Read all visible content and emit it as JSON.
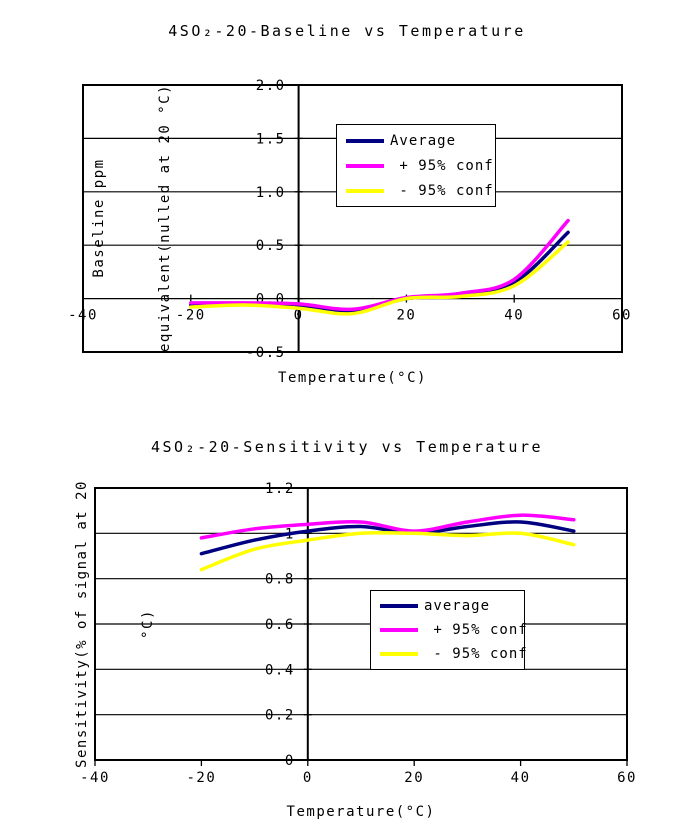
{
  "page": {
    "background": "#ffffff"
  },
  "chart_data": [
    {
      "type": "line",
      "title": "4SO₂-20-Baseline vs Temperature",
      "xlabel": "Temperature(°C)",
      "ylabel": "Baseline ppm equivalent(nulled at 20 °C)",
      "ylabel_lines": [
        "Baseline ppm",
        "equivalent(nulled at 20 °C)"
      ],
      "x": [
        -20,
        -10,
        0,
        10,
        20,
        30,
        40,
        50
      ],
      "series": [
        {
          "name": "Average",
          "legend_label": "Average",
          "color": "#000080",
          "values": [
            -0.06,
            -0.05,
            -0.07,
            -0.12,
            0.0,
            0.03,
            0.15,
            0.62
          ]
        },
        {
          "name": "+ 95% conf",
          "legend_label": " + 95% conf",
          "color": "#ff00ff",
          "values": [
            -0.04,
            -0.04,
            -0.05,
            -0.1,
            0.01,
            0.05,
            0.18,
            0.73
          ]
        },
        {
          "name": "- 95% conf",
          "legend_label": " - 95% conf",
          "color": "#ffff00",
          "values": [
            -0.08,
            -0.06,
            -0.09,
            -0.14,
            0.0,
            0.02,
            0.12,
            0.53
          ]
        }
      ],
      "xlim": [
        -40,
        60
      ],
      "ylim": [
        -0.5,
        2.0
      ],
      "x_ticks": [
        {
          "value": -40,
          "label": "-40"
        },
        {
          "value": -20,
          "label": "-20"
        },
        {
          "value": 0,
          "label": "0"
        },
        {
          "value": 20,
          "label": "20"
        },
        {
          "value": 40,
          "label": "40"
        },
        {
          "value": 60,
          "label": "60"
        }
      ],
      "y_ticks": [
        {
          "value": -0.5,
          "label": "-0.5"
        },
        {
          "value": 0,
          "label": "0.0"
        },
        {
          "value": 0.5,
          "label": "0.5"
        },
        {
          "value": 1,
          "label": "1.0"
        },
        {
          "value": 1.5,
          "label": "1.5"
        },
        {
          "value": 2,
          "label": "2.0"
        }
      ],
      "grid": "horizontal",
      "legend_position": "inside-upper-center"
    },
    {
      "type": "line",
      "title": "4SO₂-20-Sensitivity vs Temperature",
      "xlabel": "Temperature(°C)",
      "ylabel": "Sensitivity(% of signal at 20 °C)",
      "ylabel_lines": [
        "Sensitivity(% of signal at 20",
        "°C)"
      ],
      "x": [
        -20,
        -10,
        0,
        10,
        20,
        30,
        40,
        50
      ],
      "series": [
        {
          "name": "average",
          "legend_label": "average",
          "color": "#000080",
          "values": [
            0.91,
            0.97,
            1.01,
            1.03,
            1.0,
            1.03,
            1.05,
            1.01
          ]
        },
        {
          "name": "+ 95% conf",
          "legend_label": " + 95% conf",
          "color": "#ff00ff",
          "values": [
            0.98,
            1.02,
            1.04,
            1.05,
            1.01,
            1.05,
            1.08,
            1.06
          ]
        },
        {
          "name": "- 95% conf",
          "legend_label": " - 95% conf",
          "color": "#ffff00",
          "values": [
            0.84,
            0.93,
            0.97,
            1.0,
            1.0,
            0.99,
            1.0,
            0.95
          ]
        }
      ],
      "xlim": [
        -40,
        60
      ],
      "ylim": [
        0,
        1.2
      ],
      "x_ticks": [
        {
          "value": -40,
          "label": "-40"
        },
        {
          "value": -20,
          "label": "-20"
        },
        {
          "value": 0,
          "label": "0"
        },
        {
          "value": 20,
          "label": "20"
        },
        {
          "value": 40,
          "label": "40"
        },
        {
          "value": 60,
          "label": "60"
        }
      ],
      "y_ticks": [
        {
          "value": 0,
          "label": "0"
        },
        {
          "value": 0.2,
          "label": "0.2"
        },
        {
          "value": 0.4,
          "label": "0.4"
        },
        {
          "value": 0.6,
          "label": "0.6"
        },
        {
          "value": 0.8,
          "label": "0.8"
        },
        {
          "value": 1,
          "label": "1"
        },
        {
          "value": 1.2,
          "label": "1.2"
        }
      ],
      "grid": "horizontal",
      "legend_position": "inside-right-middle"
    }
  ]
}
